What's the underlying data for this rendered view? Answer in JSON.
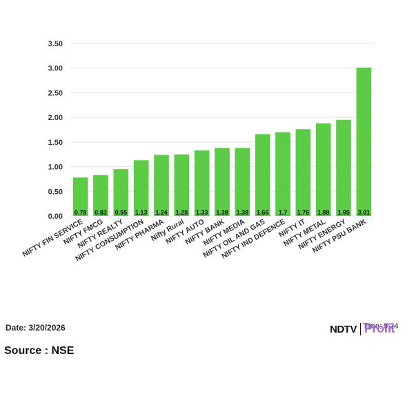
{
  "chart_data": {
    "type": "bar",
    "categories": [
      "NIFTY FIN SERVICE",
      "NIFTY FMCG",
      "NIFTY REALTY",
      "NIFTY CONSUMPTION",
      "NIFTY PHARMA",
      "Nifty Rural",
      "NIFTY AUTO",
      "NIFTY BANK",
      "NIFTY MEDIA",
      "NIFTY OIL AND GAS",
      "NIFTY IND DEFENCE",
      "NIFTY IT",
      "NIFTY METAL",
      "NIFTY ENERGY",
      "NIFTY PSU BANK"
    ],
    "values": [
      0.78,
      0.83,
      0.95,
      1.13,
      1.24,
      1.25,
      1.33,
      1.38,
      1.38,
      1.66,
      1.7,
      1.76,
      1.88,
      1.95,
      3.01
    ],
    "value_labels": [
      "0.78",
      "0.83",
      "0.95",
      "1.13",
      "1.24",
      "1.25",
      "1.33",
      "1.38",
      "1.38",
      "1.66",
      "1.7",
      "1.76",
      "1.88",
      "1.95",
      "3.01"
    ],
    "y_ticks": [
      "0.00",
      "0.50",
      "1.00",
      "1.50",
      "2.00",
      "2.50",
      "3.00",
      "3.50"
    ],
    "ylim": [
      0,
      3.5
    ],
    "grid": true,
    "bar_color": "#5ccb45",
    "title": "",
    "xlabel": "",
    "ylabel": ""
  },
  "footer": {
    "date": "Date: 3/20/2026",
    "source": "Source : NSE"
  },
  "brand": {
    "ndtv": "NDTV",
    "time": "Time: 9:24",
    "profit": "Profit"
  }
}
